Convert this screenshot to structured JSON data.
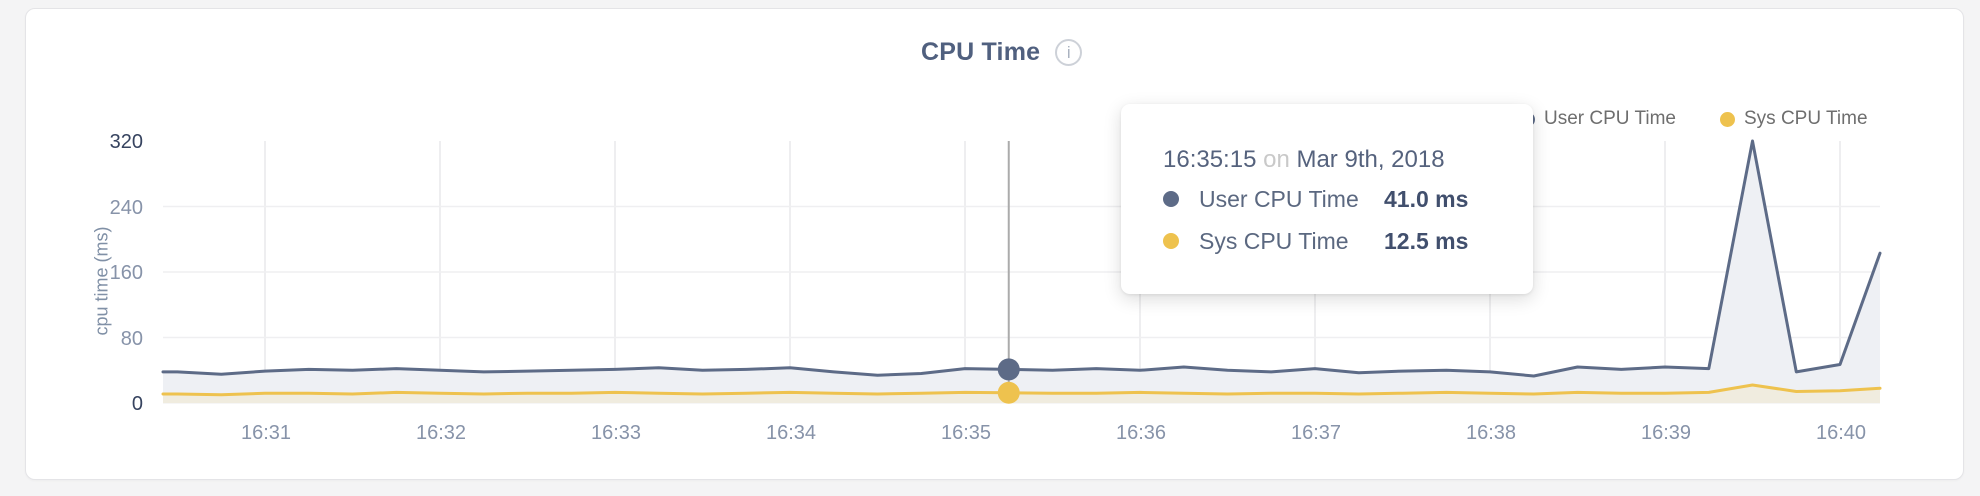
{
  "card": {
    "title": "CPU Time"
  },
  "icons": {
    "info": "i"
  },
  "legend": {
    "items": [
      {
        "label": "User CPU Time",
        "color": "#5d6b87"
      },
      {
        "label": "Sys CPU Time",
        "color": "#eec24e"
      }
    ]
  },
  "tooltip": {
    "time": "16:35:15",
    "separator": "on",
    "date": "Mar 9th, 2018",
    "rows": [
      {
        "label": "User CPU Time",
        "value": "41.0 ms",
        "color": "#5d6b87"
      },
      {
        "label": "Sys CPU Time",
        "value": "12.5 ms",
        "color": "#eec24e"
      }
    ]
  },
  "chart_data": {
    "type": "area",
    "title": "CPU Time",
    "xlabel": "",
    "ylabel": "cpu time (ms)",
    "ylim": [
      0,
      320
    ],
    "y_ticks": [
      0,
      80,
      160,
      240,
      320
    ],
    "x_ticks": [
      "16:31",
      "16:32",
      "16:33",
      "16:34",
      "16:35",
      "16:36",
      "16:37",
      "16:38",
      "16:39",
      "16:40"
    ],
    "x_start": "16:30:30",
    "interval_seconds": 15,
    "highlight_time": "16:35:15",
    "grid": true,
    "legend_position": "top-right",
    "series": [
      {
        "name": "User CPU Time",
        "unit": "ms",
        "color": "#5d6b87",
        "fill": "#eef0f4",
        "values": [
          38,
          35,
          39,
          41,
          40,
          42,
          40,
          38,
          39,
          40,
          41,
          43,
          40,
          41,
          43,
          38,
          34,
          36,
          42,
          41.0,
          40,
          42,
          40,
          44,
          40,
          38,
          42,
          37,
          39,
          40,
          38,
          33,
          44,
          41,
          44,
          42,
          320,
          38,
          47,
          183
        ]
      },
      {
        "name": "Sys CPU Time",
        "unit": "ms",
        "color": "#eec24e",
        "fill": "#f0ecdf",
        "values": [
          11,
          10,
          12,
          12,
          11,
          13,
          12,
          11,
          12,
          12,
          13,
          12,
          11,
          12,
          13,
          12,
          11,
          12,
          13,
          12.5,
          12,
          12,
          13,
          12,
          11,
          12,
          12,
          11,
          12,
          13,
          12,
          11,
          13,
          12,
          12,
          13,
          22,
          14,
          15,
          18
        ]
      }
    ]
  }
}
